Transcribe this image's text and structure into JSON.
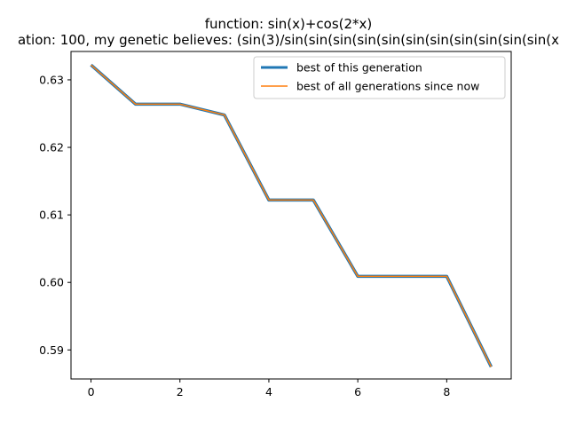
{
  "chart_data": {
    "type": "line",
    "title_line1": "function:  sin(x)+cos(2*x)",
    "title_line2": "ation: 100, my genetic believes: (sin(3)/sin(sin(sin(sin(sin(sin(sin(sin(sin(sin(sin(x",
    "x": [
      0,
      1,
      2,
      3,
      4,
      5,
      6,
      7,
      8,
      9
    ],
    "xlim": [
      -0.45,
      9.45
    ],
    "ylim": [
      0.5857,
      0.6342
    ],
    "xticks": [
      0,
      2,
      4,
      6,
      8
    ],
    "yticks": [
      0.59,
      0.6,
      0.61,
      0.62,
      0.63
    ],
    "ytick_labels": [
      "0.59",
      "0.60",
      "0.61",
      "0.62",
      "0.63"
    ],
    "grid": false,
    "legend_position": "upper-right",
    "series": [
      {
        "name": "best of this generation",
        "color": "#1f77b4",
        "values": [
          0.6322,
          0.6264,
          0.6264,
          0.6248,
          0.6122,
          0.6122,
          0.6009,
          0.6009,
          0.6009,
          0.5875
        ]
      },
      {
        "name": "best of all generations since now",
        "color": "#ff7f0e",
        "values": [
          0.6322,
          0.6264,
          0.6264,
          0.6248,
          0.6122,
          0.6122,
          0.6009,
          0.6009,
          0.6009,
          0.5875
        ]
      }
    ]
  }
}
